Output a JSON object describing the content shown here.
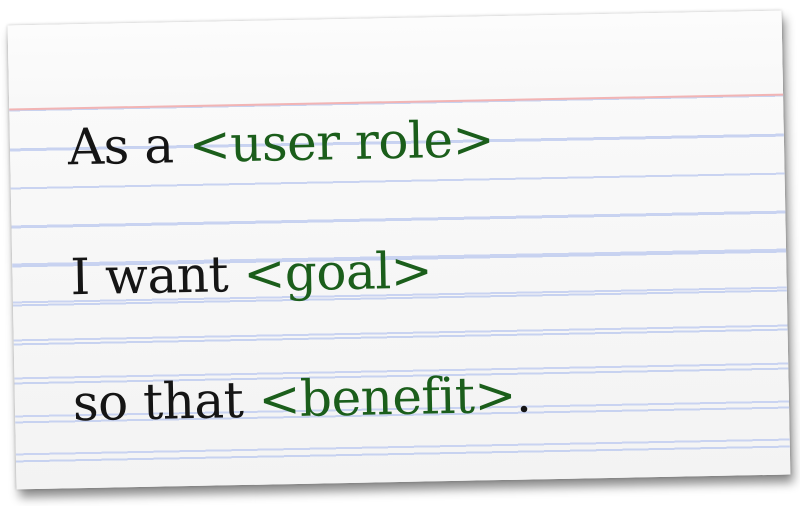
{
  "card": {
    "line1": {
      "prefix": "As a ",
      "placeholder": "<user role>",
      "suffix": ""
    },
    "line2": {
      "prefix": "I want ",
      "placeholder": "<goal>",
      "suffix": ""
    },
    "line3": {
      "prefix": "so that ",
      "placeholder": "<benefit>",
      "suffix": "."
    }
  },
  "colors": {
    "text": "#151515",
    "placeholder": "#1b5e1b",
    "rule_blue": "#c9d3f1",
    "rule_red": "#f2b4b4"
  }
}
